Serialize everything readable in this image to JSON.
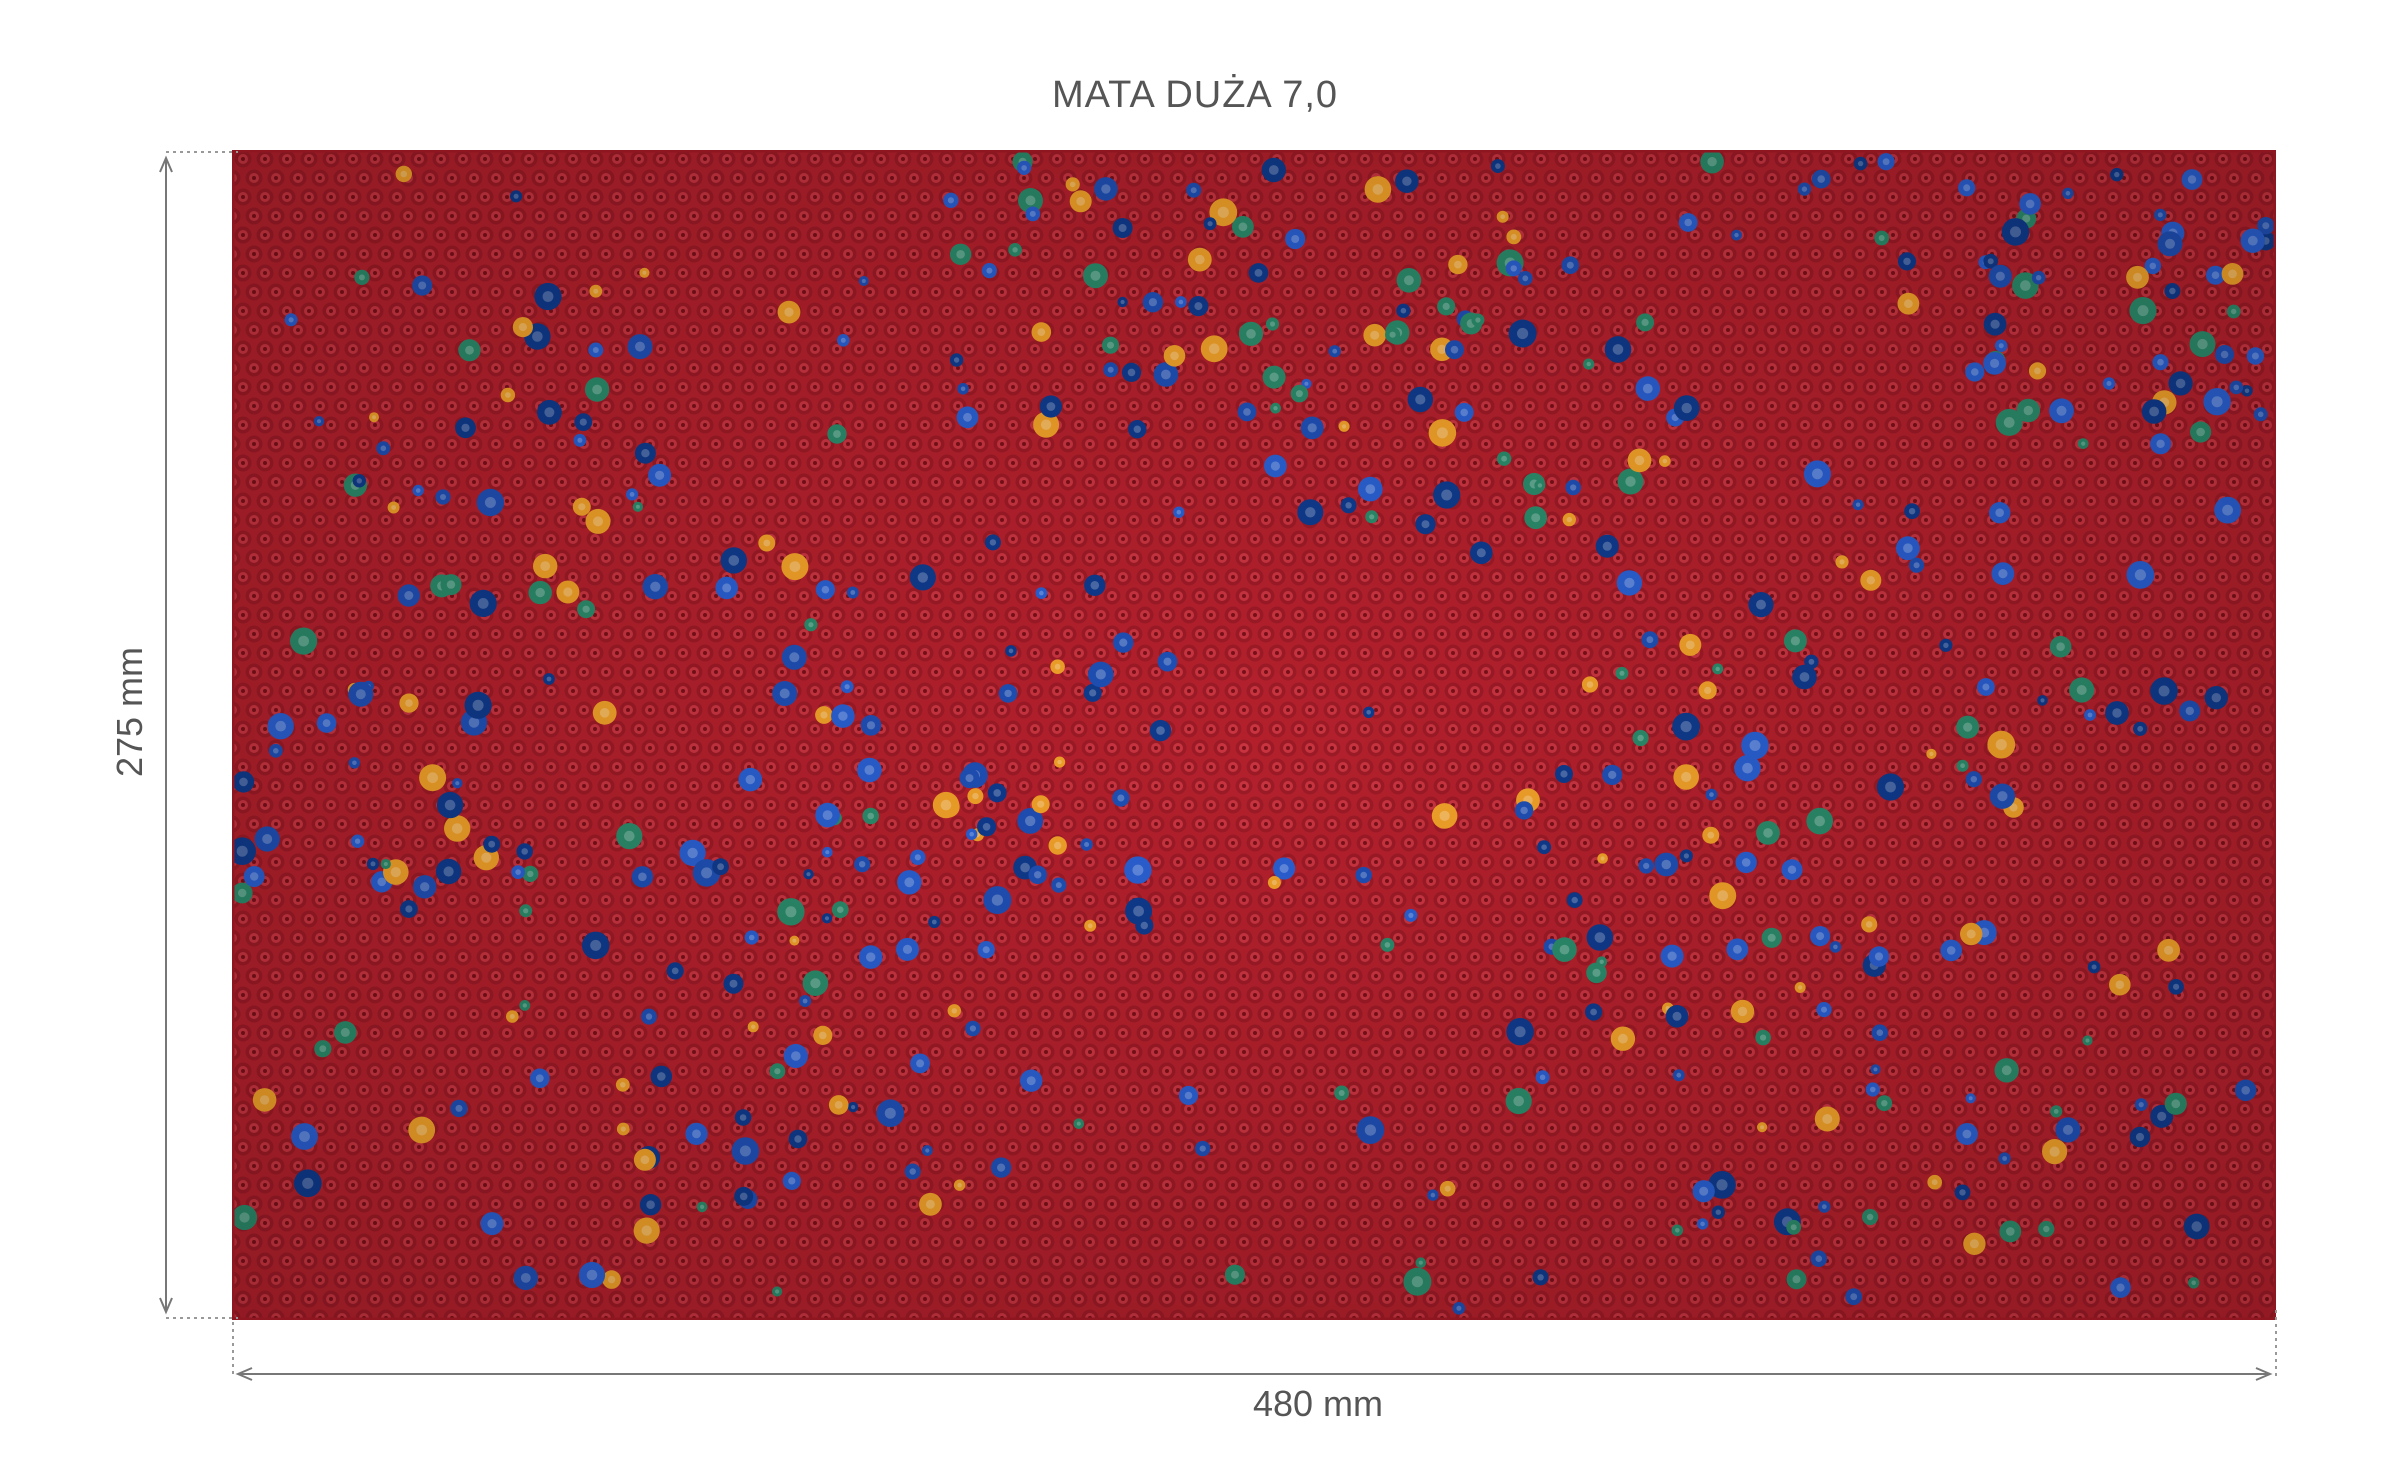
{
  "title": "MATA DUŻA 7,0",
  "dimensions": {
    "height_label": "275 mm",
    "width_label": "480 mm"
  },
  "colors": {
    "mat": "#b3202c",
    "mat_dark": "#8e1620",
    "spike_blue": "#1f4fb4",
    "spike_green": "#2b8a6a",
    "spike_orange": "#f0a028",
    "text": "#555555",
    "guide": "#888888"
  }
}
